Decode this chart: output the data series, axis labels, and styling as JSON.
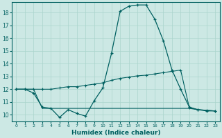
{
  "title": "",
  "xlabel": "Humidex (Indice chaleur)",
  "bg_color": "#cce8e4",
  "line_color": "#006060",
  "grid_color": "#aad4cc",
  "xlim_min": -0.5,
  "xlim_max": 23.5,
  "ylim_min": 9.5,
  "ylim_max": 18.8,
  "yticks": [
    10,
    11,
    12,
    13,
    14,
    15,
    16,
    17,
    18
  ],
  "xticks": [
    0,
    1,
    2,
    3,
    4,
    5,
    6,
    7,
    8,
    9,
    10,
    11,
    12,
    13,
    14,
    15,
    16,
    17,
    18,
    19,
    20,
    21,
    22,
    23
  ],
  "line1_x": [
    0,
    1,
    2,
    3,
    4,
    5,
    6,
    7,
    8,
    9,
    10,
    11,
    12,
    13,
    14,
    15,
    16,
    17,
    18,
    19,
    20,
    21,
    22,
    23
  ],
  "line1_y": [
    12.0,
    12.0,
    11.7,
    10.6,
    10.5,
    9.8,
    10.4,
    10.1,
    9.9,
    11.1,
    12.1,
    14.8,
    18.1,
    18.5,
    18.6,
    18.6,
    17.5,
    15.8,
    13.5,
    12.0,
    10.6,
    10.4,
    10.3,
    10.3
  ],
  "line2_x": [
    0,
    1,
    2,
    3,
    4,
    5,
    6,
    7,
    8,
    9,
    10,
    11,
    12,
    13,
    14,
    15,
    16,
    17,
    18,
    19,
    20,
    21,
    22,
    23
  ],
  "line2_y": [
    12.0,
    12.0,
    12.0,
    12.0,
    12.0,
    12.1,
    12.2,
    12.2,
    12.3,
    12.4,
    12.5,
    12.7,
    12.85,
    12.95,
    13.05,
    13.1,
    13.2,
    13.3,
    13.4,
    13.5,
    10.55,
    10.4,
    10.35,
    10.3
  ],
  "line3_x": [
    0,
    1,
    2,
    3,
    4,
    5,
    20,
    21,
    22,
    23
  ],
  "line3_y": [
    12.0,
    12.0,
    12.0,
    10.5,
    10.5,
    10.5,
    10.5,
    10.4,
    10.35,
    10.3
  ]
}
